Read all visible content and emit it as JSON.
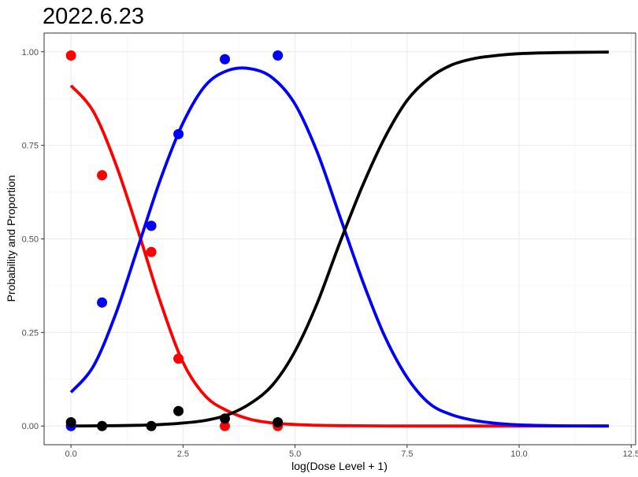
{
  "chart_data": {
    "type": "line",
    "title": "2022.6.23",
    "xlabel": "log(Dose Level + 1)",
    "ylabel": "Probability and Proportion",
    "xlim": [
      -0.6,
      12.6
    ],
    "ylim": [
      -0.05,
      1.05
    ],
    "x_ticks": [
      0.0,
      2.5,
      5.0,
      7.5,
      10.0,
      12.5
    ],
    "x_tick_labels": [
      "0.0",
      "2.5",
      "5.0",
      "7.5",
      "10.0",
      "12.5"
    ],
    "y_ticks": [
      0.0,
      0.25,
      0.5,
      0.75,
      1.0
    ],
    "y_tick_labels": [
      "0.00",
      "0.25",
      "0.50",
      "0.75",
      "1.00"
    ],
    "grid": true,
    "legend": "none",
    "series": [
      {
        "color": "#ff0000",
        "x": [
          0.0,
          0.5,
          1.0,
          1.5,
          2.0,
          2.5,
          3.0,
          3.5,
          4.0,
          4.5,
          5.0,
          5.5,
          6.0,
          7.0,
          8.0,
          9.0,
          10.0,
          11.0,
          12.0
        ],
        "y": [
          0.91,
          0.84,
          0.7,
          0.52,
          0.33,
          0.17,
          0.08,
          0.04,
          0.018,
          0.008,
          0.004,
          0.002,
          0.001,
          0.0003,
          0.0001,
          0.0,
          0.0,
          0.0,
          0.0
        ],
        "points_x": [
          0.0,
          0.693,
          1.792,
          2.398,
          3.434,
          4.615
        ],
        "points_y": [
          0.99,
          0.67,
          0.465,
          0.18,
          0.0,
          0.0
        ]
      },
      {
        "color": "#0000ff",
        "x": [
          0.0,
          0.5,
          1.0,
          1.5,
          2.0,
          2.5,
          3.0,
          3.5,
          4.0,
          4.5,
          5.0,
          5.5,
          6.0,
          6.5,
          7.0,
          7.5,
          8.0,
          8.5,
          9.0,
          9.5,
          10.0,
          11.0,
          12.0
        ],
        "y": [
          0.09,
          0.16,
          0.3,
          0.48,
          0.66,
          0.81,
          0.91,
          0.95,
          0.955,
          0.93,
          0.86,
          0.73,
          0.56,
          0.39,
          0.24,
          0.13,
          0.06,
          0.03,
          0.015,
          0.007,
          0.003,
          0.0005,
          0.0001
        ],
        "points_x": [
          0.0,
          0.693,
          1.792,
          2.398,
          3.434,
          4.615
        ],
        "points_y": [
          0.0,
          0.33,
          0.535,
          0.78,
          0.98,
          0.99
        ]
      },
      {
        "color": "#000000",
        "x": [
          0.0,
          0.5,
          1.0,
          1.5,
          2.0,
          2.5,
          3.0,
          3.5,
          4.0,
          4.5,
          5.0,
          5.5,
          6.0,
          6.5,
          7.0,
          7.5,
          8.0,
          8.5,
          9.0,
          9.5,
          10.0,
          11.0,
          12.0
        ],
        "y": [
          0.0,
          0.0005,
          0.001,
          0.002,
          0.004,
          0.008,
          0.015,
          0.03,
          0.06,
          0.11,
          0.2,
          0.33,
          0.49,
          0.64,
          0.77,
          0.87,
          0.93,
          0.965,
          0.982,
          0.99,
          0.995,
          0.998,
          0.999
        ],
        "points_x": [
          0.0,
          0.693,
          1.792,
          2.398,
          3.434,
          4.615
        ],
        "points_y": [
          0.01,
          0.0,
          0.0,
          0.04,
          0.02,
          0.01
        ]
      }
    ]
  }
}
